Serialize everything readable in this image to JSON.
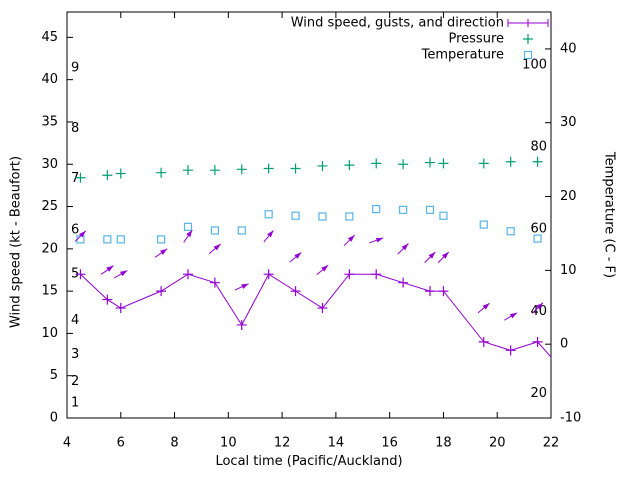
{
  "chart_data": {
    "type": "line",
    "xlabel": "Local time (Pacific/Auckland)",
    "ylabel_left": "Wind speed (kt - Beaufort)",
    "ylabel_right": "Temperature (C - F)",
    "x_range": [
      4,
      22
    ],
    "y_left_range_kt": [
      0,
      48
    ],
    "y_right_range_c": [
      -10,
      45
    ],
    "x_ticks": [
      4,
      6,
      8,
      10,
      12,
      14,
      16,
      18,
      20,
      22
    ],
    "y_left_ticks_kt": [
      0,
      5,
      10,
      15,
      20,
      25,
      30,
      35,
      40,
      45
    ],
    "y_right_ticks_c": [
      -10,
      0,
      10,
      20,
      30,
      40
    ],
    "beaufort_labels": [
      {
        "label": "1",
        "kt": 1.8
      },
      {
        "label": "2",
        "kt": 4.3
      },
      {
        "label": "3",
        "kt": 7.5
      },
      {
        "label": "4",
        "kt": 11.5
      },
      {
        "label": "5",
        "kt": 17.0
      },
      {
        "label": "6",
        "kt": 22.2
      },
      {
        "label": "7",
        "kt": 28.3
      },
      {
        "label": "8",
        "kt": 34.2
      },
      {
        "label": "9",
        "kt": 41.4
      }
    ],
    "fahrenheit_labels": [
      {
        "label": "20",
        "c": -6.7
      },
      {
        "label": "40",
        "c": 4.4
      },
      {
        "label": "60",
        "c": 15.6
      },
      {
        "label": "80",
        "c": 26.7
      },
      {
        "label": "100",
        "c": 37.8
      }
    ],
    "x": [
      4.5,
      5.5,
      6,
      7.5,
      8.5,
      9.5,
      10.5,
      11.5,
      12.5,
      13.5,
      14.5,
      15.5,
      16.5,
      17.5,
      18,
      19.5,
      20.5,
      21.5
    ],
    "series": [
      {
        "name": "Wind speed, gusts, and direction",
        "color": "#9400d3",
        "axis": "left",
        "marker": "plus",
        "style": "line-with-markers",
        "values": [
          17,
          14,
          13,
          15,
          17,
          16,
          11,
          17,
          15,
          13,
          17,
          17,
          16,
          15,
          15,
          9,
          8,
          9
        ],
        "line_tail": {
          "x": 22,
          "y": 7.2
        },
        "gusts_kt": [
          21.5,
          17.5,
          17,
          19.5,
          21.5,
          20,
          15.5,
          21.5,
          19,
          17.5,
          21,
          21,
          20,
          19,
          19,
          13,
          12,
          13
        ],
        "arrow_angles_deg": [
          45,
          35,
          30,
          35,
          55,
          40,
          25,
          50,
          40,
          40,
          45,
          20,
          45,
          45,
          45,
          40,
          30,
          45
        ]
      },
      {
        "name": "Pressure",
        "color": "#009e73",
        "axis": "left",
        "marker": "plus",
        "style": "markers-only",
        "values": [
          28.4,
          28.7,
          28.9,
          29.0,
          29.3,
          29.3,
          29.4,
          29.5,
          29.5,
          29.8,
          29.9,
          30.1,
          30.0,
          30.2,
          30.1,
          30.1,
          30.3,
          30.3
        ]
      },
      {
        "name": "Temperature",
        "color": "#56b4e9",
        "axis": "right",
        "marker": "open-square",
        "style": "markers-only",
        "values": [
          14.2,
          14.2,
          14.2,
          14.2,
          15.9,
          15.4,
          15.4,
          17.6,
          17.4,
          17.3,
          17.3,
          18.3,
          18.2,
          18.2,
          17.4,
          16.2,
          15.3,
          14.3
        ]
      }
    ],
    "legend_position": "top-right-inside"
  }
}
